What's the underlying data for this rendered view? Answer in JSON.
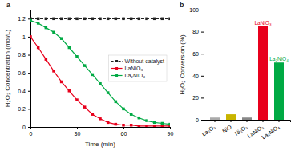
{
  "chart_data": [
    {
      "type": "line",
      "title": "a",
      "xlabel": "Time (min)",
      "ylabel": "H₂O₂ Concentration (mol/L)",
      "x": [
        0,
        5,
        10,
        15,
        20,
        25,
        30,
        35,
        40,
        45,
        50,
        55,
        60,
        65,
        70,
        75,
        80,
        85,
        90
      ],
      "series": [
        {
          "name": "Without catalyst",
          "color": "#222222",
          "marker": "square",
          "line_style": "dashed",
          "values": [
            1.2,
            1.2,
            1.2,
            1.2,
            1.2,
            1.2,
            1.2,
            1.2,
            1.2,
            1.2,
            1.2,
            1.2,
            1.2,
            1.2,
            1.2,
            1.2,
            1.2,
            1.2,
            1.2
          ]
        },
        {
          "name": "LaNiO₃",
          "color": "#e8001c",
          "marker": "square",
          "line_style": "solid",
          "values": [
            1.0,
            0.88,
            0.75,
            0.62,
            0.5,
            0.4,
            0.3,
            0.22,
            0.14,
            0.09,
            0.05,
            0.03,
            0.02,
            0.02,
            0.01,
            0.01,
            0.01,
            0.01,
            0.01
          ]
        },
        {
          "name": "La₂NiO₄",
          "color": "#00aa44",
          "marker": "square",
          "line_style": "solid",
          "values": [
            1.18,
            1.15,
            1.1,
            1.05,
            0.98,
            0.88,
            0.78,
            0.68,
            0.58,
            0.48,
            0.38,
            0.28,
            0.2,
            0.14,
            0.1,
            0.07,
            0.05,
            0.04,
            0.03
          ]
        }
      ],
      "xlim": [
        0,
        90
      ],
      "xticks": [
        0,
        30,
        60,
        90
      ],
      "ylim": [
        0,
        1.3
      ],
      "yticks": [
        0,
        0.2,
        0.4,
        0.6,
        0.8,
        1.0,
        1.2
      ],
      "legend": "right"
    },
    {
      "type": "bar",
      "title": "b",
      "ylabel": "H₂O₂ Conversion (%)",
      "categories": [
        "La₂O₃",
        "NiO",
        "Ni₂O₃",
        "LaNiO₃",
        "La₂NiO₄"
      ],
      "values": [
        2,
        5,
        2,
        85,
        52
      ],
      "colors": [
        "#aaaaaa",
        "#c8b400",
        "#888888",
        "#e8001c",
        "#00aa44"
      ],
      "ylim": [
        0,
        100
      ],
      "yticks": [
        0,
        20,
        40,
        60,
        80,
        100
      ],
      "annotations": [
        {
          "text": "LaNiO₃",
          "x": "LaNiO₃",
          "color": "#e8001c"
        },
        {
          "text": "La₂NiO₄",
          "x": "La₂NiO₄",
          "color": "#00aa44"
        }
      ]
    }
  ]
}
